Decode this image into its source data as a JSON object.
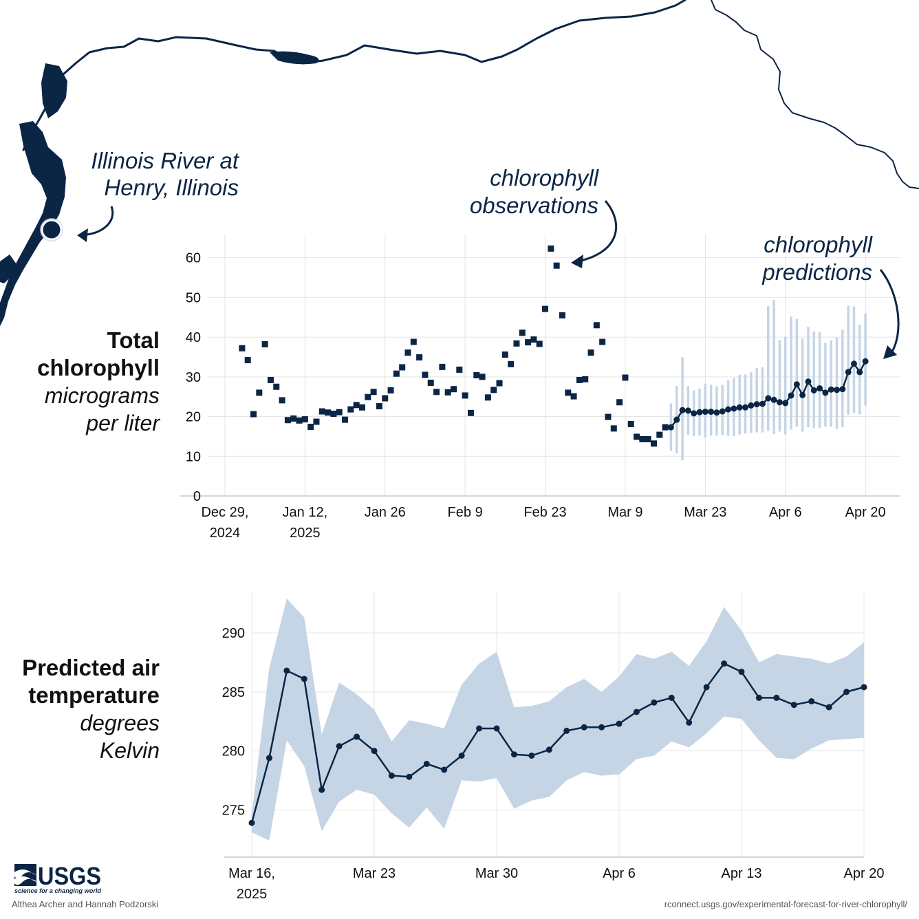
{
  "map": {
    "location_label_line1": "Illinois River at",
    "location_label_line2": "Henry, Illinois"
  },
  "annotations": {
    "observations_line1": "chlorophyll",
    "observations_line2": "observations",
    "predictions_line1": "chlorophyll",
    "predictions_line2": "predictions"
  },
  "chart_data": [
    {
      "type": "scatter",
      "title": "",
      "ylabel_bold_line1": "Total",
      "ylabel_bold_line2": "chlorophyll",
      "ylabel_italic_line1": "micrograms",
      "ylabel_italic_line2": "per liter",
      "ylim": [
        0,
        66
      ],
      "yticks": [
        0,
        10,
        20,
        30,
        40,
        50,
        60
      ],
      "xlim": [
        "2024-12-26",
        "2025-04-26"
      ],
      "xticks": [
        {
          "date": "2024-12-29",
          "line1": "Dec 29,",
          "line2": "2024"
        },
        {
          "date": "2025-01-12",
          "line1": "Jan 12,",
          "line2": "2025"
        },
        {
          "date": "2025-01-26",
          "line1": "Jan 26",
          "line2": ""
        },
        {
          "date": "2025-02-09",
          "line1": "Feb 9",
          "line2": ""
        },
        {
          "date": "2025-02-23",
          "line1": "Feb 23",
          "line2": ""
        },
        {
          "date": "2025-03-09",
          "line1": "Mar 9",
          "line2": ""
        },
        {
          "date": "2025-03-23",
          "line1": "Mar 23",
          "line2": ""
        },
        {
          "date": "2025-04-06",
          "line1": "Apr 6",
          "line2": ""
        },
        {
          "date": "2025-04-20",
          "line1": "Apr 20",
          "line2": ""
        }
      ],
      "grid": true,
      "series": [
        {
          "marker": "square",
          "color": "#0b2545",
          "points": [
            [
              "2025-01-01",
              37.2
            ],
            [
              "2025-01-02",
              34.2
            ],
            [
              "2025-01-03",
              20.6
            ],
            [
              "2025-01-04",
              26.0
            ],
            [
              "2025-01-05",
              38.2
            ],
            [
              "2025-01-06",
              29.2
            ],
            [
              "2025-01-07",
              27.5
            ],
            [
              "2025-01-08",
              24.1
            ],
            [
              "2025-01-09",
              19.1
            ],
            [
              "2025-01-10",
              19.5
            ],
            [
              "2025-01-11",
              19.0
            ],
            [
              "2025-01-12",
              19.3
            ],
            [
              "2025-01-13",
              17.4
            ],
            [
              "2025-01-14",
              18.7
            ],
            [
              "2025-01-15",
              21.3
            ],
            [
              "2025-01-16",
              21.0
            ],
            [
              "2025-01-17",
              20.7
            ],
            [
              "2025-01-18",
              21.1
            ],
            [
              "2025-01-19",
              19.2
            ],
            [
              "2025-01-20",
              21.8
            ],
            [
              "2025-01-21",
              22.9
            ],
            [
              "2025-01-22",
              22.3
            ],
            [
              "2025-01-23",
              24.9
            ],
            [
              "2025-01-24",
              26.2
            ],
            [
              "2025-01-25",
              22.6
            ],
            [
              "2025-01-26",
              24.6
            ],
            [
              "2025-01-27",
              26.6
            ],
            [
              "2025-01-28",
              30.8
            ],
            [
              "2025-01-29",
              32.4
            ],
            [
              "2025-01-30",
              36.1
            ],
            [
              "2025-01-31",
              38.8
            ],
            [
              "2025-02-01",
              34.9
            ],
            [
              "2025-02-02",
              30.5
            ],
            [
              "2025-02-03",
              28.5
            ],
            [
              "2025-02-04",
              26.2
            ],
            [
              "2025-02-05",
              32.5
            ],
            [
              "2025-02-06",
              26.1
            ],
            [
              "2025-02-07",
              26.9
            ],
            [
              "2025-02-08",
              31.8
            ],
            [
              "2025-02-09",
              25.3
            ],
            [
              "2025-02-10",
              20.9
            ],
            [
              "2025-02-11",
              30.4
            ],
            [
              "2025-02-12",
              30.0
            ],
            [
              "2025-02-13",
              24.8
            ],
            [
              "2025-02-14",
              26.7
            ],
            [
              "2025-02-15",
              28.4
            ],
            [
              "2025-02-16",
              35.6
            ],
            [
              "2025-02-17",
              33.2
            ],
            [
              "2025-02-18",
              38.4
            ],
            [
              "2025-02-19",
              41.1
            ],
            [
              "2025-02-20",
              38.7
            ],
            [
              "2025-02-21",
              39.4
            ],
            [
              "2025-02-22",
              38.3
            ],
            [
              "2025-02-23",
              47.1
            ],
            [
              "2025-02-24",
              62.3
            ],
            [
              "2025-02-25",
              58.0
            ],
            [
              "2025-02-26",
              45.5
            ],
            [
              "2025-02-27",
              26.0
            ],
            [
              "2025-02-28",
              25.1
            ],
            [
              "2025-03-01",
              29.2
            ],
            [
              "2025-03-02",
              29.4
            ],
            [
              "2025-03-03",
              36.1
            ],
            [
              "2025-03-04",
              43.0
            ],
            [
              "2025-03-05",
              38.8
            ],
            [
              "2025-03-06",
              19.9
            ],
            [
              "2025-03-07",
              17.0
            ],
            [
              "2025-03-08",
              23.6
            ],
            [
              "2025-03-09",
              29.8
            ],
            [
              "2025-03-10",
              18.1
            ],
            [
              "2025-03-11",
              14.9
            ],
            [
              "2025-03-12",
              14.3
            ],
            [
              "2025-03-13",
              14.3
            ],
            [
              "2025-03-14",
              13.2
            ],
            [
              "2025-03-15",
              15.4
            ],
            [
              "2025-03-16",
              17.3
            ]
          ]
        },
        {
          "marker": "circle-line",
          "color": "#0b2545",
          "interval_color": "#c5d5e6",
          "points": [
            [
              "2025-03-17",
              17.3,
              11.3,
              23.3
            ],
            [
              "2025-03-18",
              19.2,
              10.7,
              27.7
            ],
            [
              "2025-03-19",
              21.6,
              9.0,
              34.9
            ],
            [
              "2025-03-20",
              21.5,
              15.3,
              27.7
            ],
            [
              "2025-03-21",
              20.8,
              15.1,
              26.6
            ],
            [
              "2025-03-22",
              21.1,
              15.2,
              27.0
            ],
            [
              "2025-03-23",
              21.2,
              14.7,
              28.3
            ],
            [
              "2025-03-24",
              21.2,
              15.2,
              28.0
            ],
            [
              "2025-03-25",
              21.0,
              15.2,
              27.6
            ],
            [
              "2025-03-26",
              21.3,
              15.3,
              28.0
            ],
            [
              "2025-03-27",
              21.8,
              15.2,
              29.1
            ],
            [
              "2025-03-28",
              22.0,
              15.1,
              29.7
            ],
            [
              "2025-03-29",
              22.3,
              15.5,
              30.5
            ],
            [
              "2025-03-30",
              22.3,
              15.7,
              30.6
            ],
            [
              "2025-03-31",
              22.8,
              15.9,
              31.2
            ],
            [
              "2025-04-01",
              23.1,
              16.0,
              32.2
            ],
            [
              "2025-04-02",
              23.2,
              16.0,
              32.4
            ],
            [
              "2025-04-03",
              24.6,
              16.4,
              47.8
            ],
            [
              "2025-04-04",
              24.2,
              15.6,
              49.4
            ],
            [
              "2025-04-05",
              23.6,
              16.2,
              39.3
            ],
            [
              "2025-04-06",
              23.4,
              15.5,
              40.1
            ],
            [
              "2025-04-07",
              25.3,
              16.7,
              45.2
            ],
            [
              "2025-04-08",
              28.1,
              17.4,
              44.6
            ],
            [
              "2025-04-09",
              25.4,
              16.2,
              39.6
            ],
            [
              "2025-04-10",
              28.8,
              17.3,
              42.6
            ],
            [
              "2025-04-11",
              26.6,
              17.1,
              41.4
            ],
            [
              "2025-04-12",
              27.1,
              17.2,
              41.2
            ],
            [
              "2025-04-13",
              26.0,
              17.5,
              38.6
            ],
            [
              "2025-04-14",
              26.8,
              17.4,
              39.2
            ],
            [
              "2025-04-15",
              26.7,
              16.9,
              39.9
            ],
            [
              "2025-04-16",
              26.9,
              17.3,
              41.9
            ],
            [
              "2025-04-17",
              31.2,
              20.4,
              47.9
            ],
            [
              "2025-04-18",
              33.3,
              20.9,
              47.7
            ],
            [
              "2025-04-19",
              31.2,
              20.5,
              43.1
            ],
            [
              "2025-04-20",
              33.9,
              22.8,
              46.0
            ]
          ]
        }
      ]
    },
    {
      "type": "line",
      "title": "",
      "ylabel_bold_line1": "Predicted air",
      "ylabel_bold_line2": "temperature",
      "ylabel_italic_line1": "degrees",
      "ylabel_italic_line2": "Kelvin",
      "ylim": [
        271.0,
        293.5
      ],
      "yticks": [
        275,
        280,
        285,
        290
      ],
      "xlim": [
        "2025-03-16",
        "2025-04-20"
      ],
      "xticks": [
        {
          "date": "2025-03-16",
          "line1": "Mar 16,",
          "line2": "2025"
        },
        {
          "date": "2025-03-23",
          "line1": "Mar 23",
          "line2": ""
        },
        {
          "date": "2025-03-30",
          "line1": "Mar 30",
          "line2": ""
        },
        {
          "date": "2025-04-06",
          "line1": "Apr 6",
          "line2": ""
        },
        {
          "date": "2025-04-13",
          "line1": "Apr 13",
          "line2": ""
        },
        {
          "date": "2025-04-20",
          "line1": "Apr 20",
          "line2": ""
        }
      ],
      "grid": true,
      "series": [
        {
          "color": "#0b2545",
          "band_color": "#c5d5e6",
          "points": [
            [
              "2025-03-16",
              273.9,
              273.1,
              274.6
            ],
            [
              "2025-03-17",
              279.4,
              272.4,
              287.0
            ],
            [
              "2025-03-18",
              286.8,
              280.9,
              292.9
            ],
            [
              "2025-03-19",
              286.1,
              278.7,
              291.3
            ],
            [
              "2025-03-20",
              276.7,
              273.2,
              281.4
            ],
            [
              "2025-03-21",
              280.4,
              275.7,
              285.8
            ],
            [
              "2025-03-22",
              281.2,
              276.7,
              284.8
            ],
            [
              "2025-03-23",
              280.0,
              276.3,
              283.5
            ],
            [
              "2025-03-24",
              277.9,
              274.7,
              280.8
            ],
            [
              "2025-03-25",
              277.8,
              273.5,
              282.6
            ],
            [
              "2025-03-26",
              278.9,
              275.2,
              282.3
            ],
            [
              "2025-03-27",
              278.4,
              273.4,
              281.9
            ],
            [
              "2025-03-28",
              279.6,
              277.5,
              285.6
            ],
            [
              "2025-03-29",
              281.9,
              277.4,
              287.4
            ],
            [
              "2025-03-30",
              281.9,
              277.7,
              288.4
            ],
            [
              "2025-03-31",
              279.7,
              275.1,
              283.7
            ],
            [
              "2025-04-01",
              279.6,
              275.8,
              283.8
            ],
            [
              "2025-04-02",
              280.1,
              276.1,
              284.2
            ],
            [
              "2025-04-03",
              281.7,
              277.5,
              285.4
            ],
            [
              "2025-04-04",
              282.0,
              278.2,
              286.1
            ],
            [
              "2025-04-05",
              282.0,
              277.9,
              285.0
            ],
            [
              "2025-04-06",
              282.3,
              278.0,
              286.3
            ],
            [
              "2025-04-07",
              283.3,
              279.3,
              288.2
            ],
            [
              "2025-04-08",
              284.1,
              279.6,
              287.8
            ],
            [
              "2025-04-09",
              284.5,
              280.8,
              288.4
            ],
            [
              "2025-04-10",
              282.4,
              280.3,
              287.2
            ],
            [
              "2025-04-11",
              285.4,
              281.5,
              289.3
            ],
            [
              "2025-04-12",
              287.4,
              282.9,
              292.2
            ],
            [
              "2025-04-13",
              286.7,
              282.7,
              290.2
            ],
            [
              "2025-04-14",
              284.5,
              280.9,
              287.5
            ],
            [
              "2025-04-15",
              284.5,
              279.4,
              288.2
            ],
            [
              "2025-04-16",
              283.9,
              279.3,
              288.0
            ],
            [
              "2025-04-17",
              284.2,
              280.2,
              287.8
            ],
            [
              "2025-04-18",
              283.7,
              280.9,
              287.4
            ],
            [
              "2025-04-19",
              285.0,
              281.0,
              288.0
            ],
            [
              "2025-04-20",
              285.4,
              281.1,
              289.2
            ]
          ]
        }
      ]
    }
  ],
  "footer": {
    "logo_text": "USGS",
    "logo_tagline": "science for a changing world",
    "authors": "Althea Archer and Hannah Podzorski",
    "url": "rconnect.usgs.gov/experimental-forecast-for-river-chlorophyll/"
  },
  "colors": {
    "navy": "#0b2545",
    "band": "#c5d5e6",
    "grid": "#e4e4e4"
  }
}
